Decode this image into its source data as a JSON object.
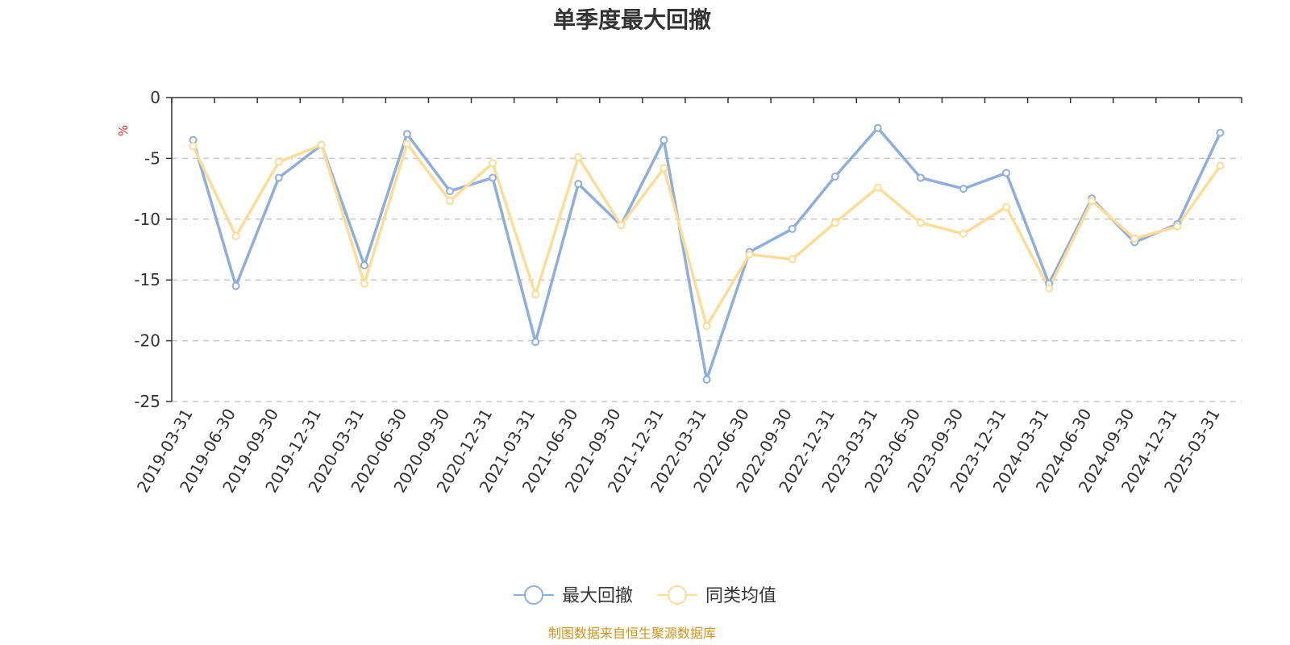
{
  "chart_data": {
    "type": "line",
    "title": "单季度最大回撤",
    "ylabel": "%",
    "ylim": [
      -25,
      0
    ],
    "yticks": [
      "0",
      "-5",
      "-10",
      "-15",
      "-20",
      "-25"
    ],
    "ytick_values": [
      0,
      -5,
      -10,
      -15,
      -20,
      -25
    ],
    "grid": true,
    "legend_position": "bottom-center",
    "categories": [
      "2019-03-31",
      "2019-06-30",
      "2019-09-30",
      "2019-12-31",
      "2020-03-31",
      "2020-06-30",
      "2020-09-30",
      "2020-12-31",
      "2021-03-31",
      "2021-06-30",
      "2021-09-30",
      "2021-12-31",
      "2022-03-31",
      "2022-06-30",
      "2022-09-30",
      "2022-12-31",
      "2023-03-31",
      "2023-06-30",
      "2023-09-30",
      "2023-12-31",
      "2024-03-31",
      "2024-06-30",
      "2024-09-30",
      "2024-12-31",
      "2025-03-31"
    ],
    "series": [
      {
        "name": "最大回撤",
        "color": "#8eaedc",
        "values": [
          -3.5,
          -15.5,
          -6.6,
          -3.9,
          -13.8,
          -3.0,
          -7.7,
          -6.6,
          -20.1,
          -7.1,
          -10.5,
          -3.5,
          -23.2,
          -12.7,
          -10.8,
          -6.5,
          -2.5,
          -6.6,
          -7.5,
          -6.2,
          -15.3,
          -8.3,
          -11.9,
          -10.4,
          -2.9
        ]
      },
      {
        "name": "同类均值",
        "color": "#fddc96",
        "values": [
          -4.0,
          -11.4,
          -5.3,
          -3.9,
          -15.3,
          -3.8,
          -8.5,
          -5.4,
          -16.2,
          -4.9,
          -10.5,
          -5.8,
          -18.8,
          -12.9,
          -13.3,
          -10.3,
          -7.4,
          -10.3,
          -11.2,
          -9.0,
          -15.7,
          -8.5,
          -11.6,
          -10.6,
          -5.6
        ]
      }
    ],
    "source": "制图数据来自恒生聚源数据库"
  }
}
